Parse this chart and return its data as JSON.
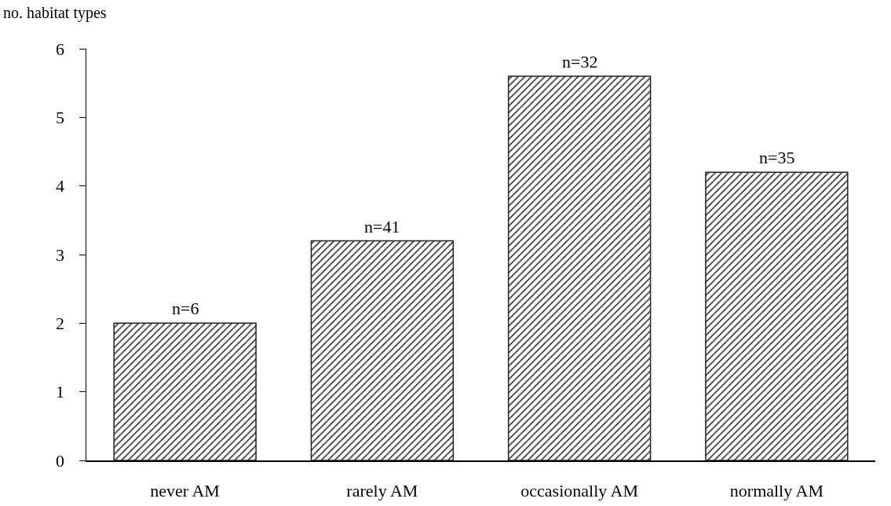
{
  "chart_data": {
    "type": "bar",
    "ylabel": "no. habitat types",
    "categories": [
      "never AM",
      "rarely AM",
      "occasionally AM",
      "normally AM"
    ],
    "values": [
      2.0,
      3.2,
      5.6,
      4.2
    ],
    "annotations": [
      {
        "text": "n=6",
        "x": "never AM",
        "y": 2.0
      },
      {
        "text": "n=41",
        "x": "rarely AM",
        "y": 3.2
      },
      {
        "text": "n=32",
        "x": "occasionally AM",
        "y": 5.6
      },
      {
        "text": "n=35",
        "x": "normally AM",
        "y": 4.2
      }
    ],
    "color": "#222222",
    "ylim": [
      0,
      6
    ],
    "yticks": [
      0,
      1,
      2,
      3,
      4,
      5,
      6
    ],
    "grid": false,
    "legend": false
  }
}
